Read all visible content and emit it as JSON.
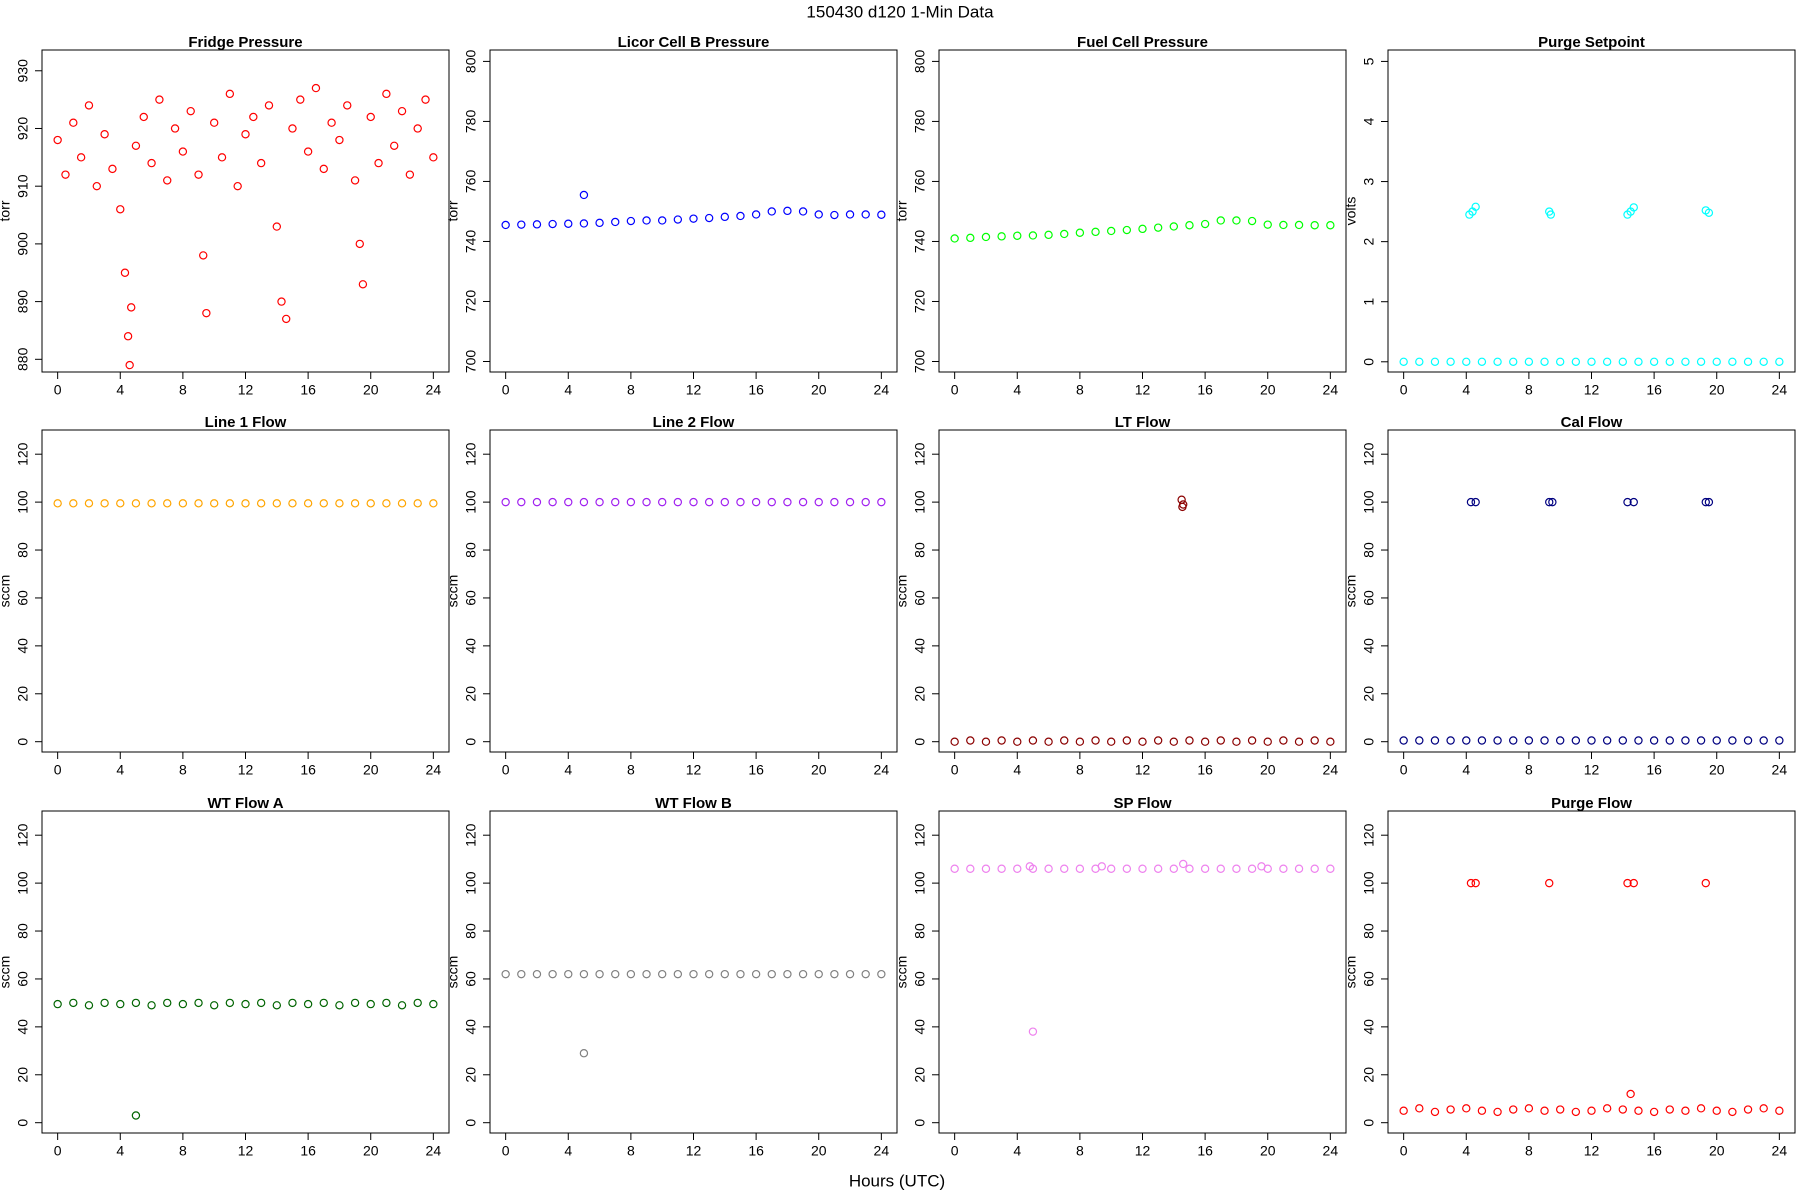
{
  "title": "150430   d120   1-Min Data",
  "x_label": "Hours (UTC)",
  "chart_data": [
    {
      "type": "scatter",
      "title": "Fridge Pressure",
      "y_label": "torr",
      "color": "#ff0000",
      "x": [
        0,
        0.5,
        1,
        1.5,
        2,
        2.5,
        3,
        3.5,
        4,
        4.3,
        4.5,
        4.6,
        4.7,
        5,
        5.5,
        6,
        6.5,
        7,
        7.5,
        8,
        8.5,
        9,
        9.3,
        9.5,
        10,
        10.5,
        11,
        11.5,
        12,
        12.5,
        13,
        13.5,
        14,
        14.3,
        14.6,
        15,
        15.5,
        16,
        16.5,
        17,
        17.5,
        18,
        18.5,
        19,
        19.3,
        19.5,
        20,
        20.5,
        21,
        21.5,
        22,
        22.5,
        23,
        23.5,
        24
      ],
      "values": [
        918,
        912,
        921,
        915,
        924,
        910,
        919,
        913,
        906,
        895,
        884,
        879,
        889,
        917,
        922,
        914,
        925,
        911,
        920,
        916,
        923,
        912,
        898,
        888,
        921,
        915,
        926,
        910,
        919,
        922,
        914,
        924,
        903,
        890,
        887,
        920,
        925,
        916,
        927,
        913,
        921,
        918,
        924,
        911,
        900,
        893,
        922,
        914,
        926,
        917,
        923,
        912,
        920,
        925,
        915
      ],
      "xlim": [
        -1,
        25
      ],
      "xticks": [
        0,
        4,
        8,
        12,
        16,
        20,
        24
      ],
      "ylim": [
        877.8,
        933.6
      ],
      "yticks": [
        880,
        890,
        900,
        910,
        920,
        930
      ]
    },
    {
      "type": "scatter",
      "title": "Licor Cell B Pressure",
      "y_label": "torr",
      "color": "#0000ff",
      "x": [
        0,
        1,
        2,
        3,
        4,
        5,
        5,
        6,
        7,
        8,
        9,
        10,
        11,
        12,
        13,
        14,
        15,
        16,
        17,
        18,
        19,
        20,
        21,
        22,
        23,
        24
      ],
      "values": [
        745.5,
        745.6,
        745.7,
        745.8,
        745.9,
        746,
        755.5,
        746.2,
        746.5,
        746.8,
        747,
        747,
        747.3,
        747.6,
        747.8,
        748.2,
        748.5,
        749,
        750,
        750.2,
        750,
        749,
        748.8,
        749,
        749,
        748.9
      ],
      "xlim": [
        -1,
        25
      ],
      "xticks": [
        0,
        4,
        8,
        12,
        16,
        20,
        24
      ],
      "ylim": [
        696.5,
        803.8
      ],
      "yticks": [
        700,
        720,
        740,
        760,
        780,
        800
      ]
    },
    {
      "type": "scatter",
      "title": "Fuel Cell Pressure",
      "y_label": "torr",
      "color": "#00ff00",
      "x": [
        0,
        1,
        2,
        3,
        4,
        5,
        6,
        7,
        8,
        9,
        10,
        11,
        12,
        13,
        14,
        15,
        16,
        17,
        18,
        19,
        20,
        21,
        22,
        23,
        24
      ],
      "values": [
        741,
        741.2,
        741.5,
        741.7,
        741.9,
        742,
        742.2,
        742.5,
        742.9,
        743.2,
        743.5,
        743.8,
        744.2,
        744.6,
        745,
        745.4,
        745.8,
        747,
        747,
        746.8,
        745.6,
        745.5,
        745.5,
        745.4,
        745.4
      ],
      "xlim": [
        -1,
        25
      ],
      "xticks": [
        0,
        4,
        8,
        12,
        16,
        20,
        24
      ],
      "ylim": [
        696.5,
        803.8
      ],
      "yticks": [
        700,
        720,
        740,
        760,
        780,
        800
      ]
    },
    {
      "type": "scatter",
      "title": "Purge Setpoint",
      "y_label": "volts",
      "color": "#00ffff",
      "x": [
        0,
        1,
        2,
        3,
        4,
        5,
        6,
        7,
        8,
        9,
        10,
        11,
        12,
        13,
        14,
        15,
        16,
        17,
        18,
        19,
        20,
        21,
        22,
        23,
        24,
        4.2,
        4.4,
        4.6,
        9.3,
        9.4,
        14.3,
        14.5,
        14.7,
        19.3,
        19.5
      ],
      "values": [
        0,
        0,
        0,
        0,
        0,
        0,
        0,
        0,
        0,
        0,
        0,
        0,
        0,
        0,
        0,
        0,
        0,
        0,
        0,
        0,
        0,
        0,
        0,
        0,
        0,
        2.45,
        2.5,
        2.58,
        2.5,
        2.45,
        2.45,
        2.5,
        2.57,
        2.52,
        2.48
      ],
      "xlim": [
        -1,
        25
      ],
      "xticks": [
        0,
        4,
        8,
        12,
        16,
        20,
        24
      ],
      "ylim": [
        -0.17,
        5.19
      ],
      "yticks": [
        0,
        1,
        2,
        3,
        4,
        5
      ]
    },
    {
      "type": "scatter",
      "title": "Line 1 Flow",
      "y_label": "sccm",
      "color": "#ffa500",
      "x": [
        0,
        1,
        2,
        3,
        4,
        5,
        6,
        7,
        8,
        9,
        10,
        11,
        12,
        13,
        14,
        15,
        16,
        17,
        18,
        19,
        20,
        21,
        22,
        23,
        24
      ],
      "values": [
        99.5,
        99.5,
        99.5,
        99.5,
        99.5,
        99.5,
        99.5,
        99.5,
        99.5,
        99.5,
        99.5,
        99.5,
        99.5,
        99.5,
        99.5,
        99.5,
        99.5,
        99.5,
        99.5,
        99.5,
        99.5,
        99.5,
        99.5,
        99.5,
        99.5
      ],
      "xlim": [
        -1,
        25
      ],
      "xticks": [
        0,
        4,
        8,
        12,
        16,
        20,
        24
      ],
      "ylim": [
        -4.3,
        130.1
      ],
      "yticks": [
        0,
        20,
        40,
        60,
        80,
        100,
        120
      ]
    },
    {
      "type": "scatter",
      "title": "Line 2 Flow",
      "y_label": "sccm",
      "color": "#a020f0",
      "x": [
        0,
        1,
        2,
        3,
        4,
        5,
        6,
        7,
        8,
        9,
        10,
        11,
        12,
        13,
        14,
        15,
        16,
        17,
        18,
        19,
        20,
        21,
        22,
        23,
        24
      ],
      "values": [
        100,
        100,
        100,
        100,
        100,
        100,
        100,
        100,
        100,
        100,
        100,
        100,
        100,
        100,
        100,
        100,
        100,
        100,
        100,
        100,
        100,
        100,
        100,
        100,
        100
      ],
      "xlim": [
        -1,
        25
      ],
      "xticks": [
        0,
        4,
        8,
        12,
        16,
        20,
        24
      ],
      "ylim": [
        -4.3,
        130.1
      ],
      "yticks": [
        0,
        20,
        40,
        60,
        80,
        100,
        120
      ]
    },
    {
      "type": "scatter",
      "title": "LT Flow",
      "y_label": "sccm",
      "color": "#8b0000",
      "x": [
        0,
        1,
        2,
        3,
        4,
        5,
        6,
        7,
        8,
        9,
        10,
        11,
        12,
        13,
        14,
        15,
        16,
        17,
        18,
        19,
        20,
        21,
        22,
        23,
        24,
        14.5,
        14.55,
        14.6
      ],
      "values": [
        0,
        0.5,
        0,
        0.5,
        0,
        0.5,
        0,
        0.5,
        0,
        0.5,
        0,
        0.5,
        0,
        0.5,
        0,
        0.5,
        0,
        0.5,
        0,
        0.5,
        0,
        0.5,
        0,
        0.5,
        0,
        101,
        98,
        99
      ],
      "xlim": [
        -1,
        25
      ],
      "xticks": [
        0,
        4,
        8,
        12,
        16,
        20,
        24
      ],
      "ylim": [
        -4.3,
        130.1
      ],
      "yticks": [
        0,
        20,
        40,
        60,
        80,
        100,
        120
      ]
    },
    {
      "type": "scatter",
      "title": "Cal Flow",
      "y_label": "sccm",
      "color": "#000080",
      "x": [
        0,
        1,
        2,
        3,
        4,
        5,
        6,
        7,
        8,
        9,
        10,
        11,
        12,
        13,
        14,
        15,
        16,
        17,
        18,
        19,
        20,
        21,
        22,
        23,
        24,
        4.3,
        4.6,
        9.3,
        9.5,
        14.3,
        14.7,
        19.3,
        19.5
      ],
      "values": [
        0.5,
        0.5,
        0.5,
        0.5,
        0.5,
        0.5,
        0.5,
        0.5,
        0.5,
        0.5,
        0.5,
        0.5,
        0.5,
        0.5,
        0.5,
        0.5,
        0.5,
        0.5,
        0.5,
        0.5,
        0.5,
        0.5,
        0.5,
        0.5,
        0.5,
        100,
        100,
        100,
        100,
        100,
        100,
        100,
        100
      ],
      "xlim": [
        -1,
        25
      ],
      "xticks": [
        0,
        4,
        8,
        12,
        16,
        20,
        24
      ],
      "ylim": [
        -4.3,
        130.1
      ],
      "yticks": [
        0,
        20,
        40,
        60,
        80,
        100,
        120
      ]
    },
    {
      "type": "scatter",
      "title": "WT Flow A",
      "y_label": "sccm",
      "color": "#006400",
      "x": [
        0,
        1,
        2,
        3,
        4,
        5,
        5,
        6,
        7,
        8,
        9,
        10,
        11,
        12,
        13,
        14,
        15,
        16,
        17,
        18,
        19,
        20,
        21,
        22,
        23,
        24
      ],
      "values": [
        49.5,
        50,
        49,
        50,
        49.5,
        50,
        3,
        49,
        50,
        49.5,
        50,
        49,
        50,
        49.5,
        50,
        49,
        50,
        49.5,
        50,
        49,
        50,
        49.5,
        50,
        49,
        50,
        49.5
      ],
      "xlim": [
        -1,
        25
      ],
      "xticks": [
        0,
        4,
        8,
        12,
        16,
        20,
        24
      ],
      "ylim": [
        -4.3,
        130.1
      ],
      "yticks": [
        0,
        20,
        40,
        60,
        80,
        100,
        120
      ]
    },
    {
      "type": "scatter",
      "title": "WT Flow B",
      "y_label": "sccm",
      "color": "#808080",
      "x": [
        0,
        1,
        2,
        3,
        4,
        5,
        5,
        6,
        7,
        8,
        9,
        10,
        11,
        12,
        13,
        14,
        15,
        16,
        17,
        18,
        19,
        20,
        21,
        22,
        23,
        24
      ],
      "values": [
        62,
        62,
        62,
        62,
        62,
        62,
        29,
        62,
        62,
        62,
        62,
        62,
        62,
        62,
        62,
        62,
        62,
        62,
        62,
        62,
        62,
        62,
        62,
        62,
        62,
        62
      ],
      "xlim": [
        -1,
        25
      ],
      "xticks": [
        0,
        4,
        8,
        12,
        16,
        20,
        24
      ],
      "ylim": [
        -4.3,
        130.1
      ],
      "yticks": [
        0,
        20,
        40,
        60,
        80,
        100,
        120
      ]
    },
    {
      "type": "scatter",
      "title": "SP Flow",
      "y_label": "sccm",
      "color": "#ee82ee",
      "x": [
        0,
        1,
        2,
        3,
        4,
        4.8,
        5,
        5,
        6,
        7,
        8,
        9,
        9.4,
        10,
        11,
        12,
        13,
        14,
        14.6,
        15,
        16,
        17,
        18,
        19,
        19.6,
        20,
        21,
        22,
        23,
        24
      ],
      "values": [
        106,
        106,
        106,
        106,
        106,
        107,
        106,
        38,
        106,
        106,
        106,
        106,
        107,
        106,
        106,
        106,
        106,
        106,
        108,
        106,
        106,
        106,
        106,
        106,
        107,
        106,
        106,
        106,
        106,
        106
      ],
      "xlim": [
        -1,
        25
      ],
      "xticks": [
        0,
        4,
        8,
        12,
        16,
        20,
        24
      ],
      "ylim": [
        -4.3,
        130.1
      ],
      "yticks": [
        0,
        20,
        40,
        60,
        80,
        100,
        120
      ]
    },
    {
      "type": "scatter",
      "title": "Purge Flow",
      "y_label": "sccm",
      "color": "#ff0000",
      "x": [
        0,
        1,
        2,
        3,
        4,
        5,
        6,
        7,
        8,
        9,
        10,
        11,
        12,
        13,
        14,
        14.5,
        15,
        16,
        17,
        18,
        19,
        20,
        21,
        22,
        23,
        24,
        4.3,
        4.6,
        9.3,
        14.3,
        14.7,
        19.3
      ],
      "values": [
        5,
        6,
        4.5,
        5.5,
        6,
        5,
        4.5,
        5.5,
        6,
        5,
        5.5,
        4.5,
        5,
        6,
        5.5,
        12,
        5,
        4.5,
        5.5,
        5,
        6,
        5,
        4.5,
        5.5,
        6,
        5,
        100,
        100,
        100,
        100,
        100,
        100
      ],
      "xlim": [
        -1,
        25
      ],
      "xticks": [
        0,
        4,
        8,
        12,
        16,
        20,
        24
      ],
      "ylim": [
        -4.3,
        130.1
      ],
      "yticks": [
        0,
        20,
        40,
        60,
        80,
        100,
        120
      ]
    }
  ]
}
